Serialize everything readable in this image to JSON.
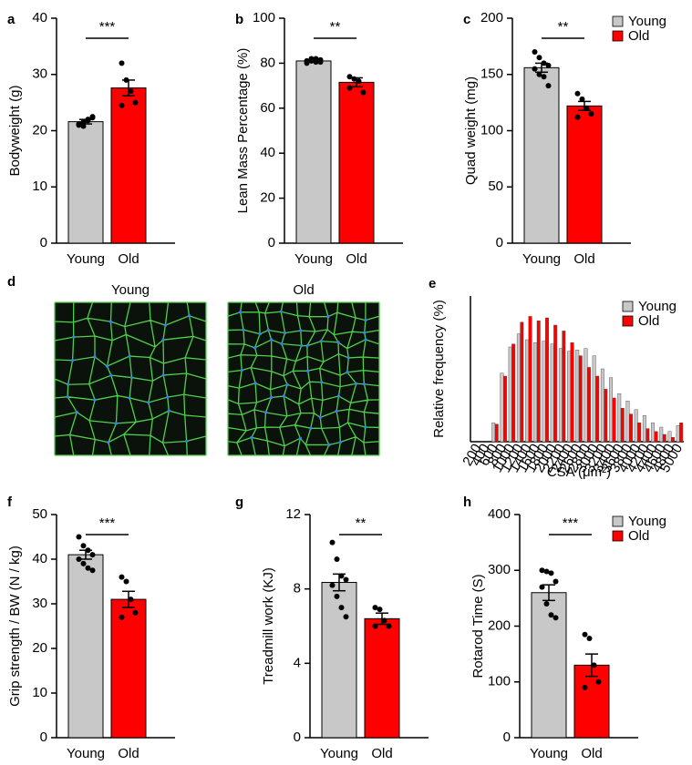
{
  "chart_data": [
    {
      "type": "bar",
      "panel": "a",
      "ylabel": "Bodyweight (g)",
      "categories": [
        "Young",
        "Old"
      ],
      "colors": [
        "#c8c8c8",
        "#ff0000"
      ],
      "values": [
        21.6,
        27.6
      ],
      "errors": [
        0.4,
        1.4
      ],
      "points": [
        [
          21.0,
          21.5,
          22.0,
          22.5,
          21.2,
          20.8,
          21.8,
          22.3
        ],
        [
          32,
          29,
          27,
          25,
          24.5
        ]
      ],
      "significance": "***",
      "ylim": [
        0,
        40
      ],
      "yticks": [
        0,
        10,
        20,
        30,
        40
      ]
    },
    {
      "type": "bar",
      "panel": "b",
      "ylabel": "Lean Mass Percentage (%)",
      "categories": [
        "Young",
        "Old"
      ],
      "colors": [
        "#c8c8c8",
        "#ff0000"
      ],
      "values": [
        81,
        71.5
      ],
      "errors": [
        0.5,
        2
      ],
      "points": [
        [
          81,
          82,
          80.5,
          81.5,
          80,
          81,
          82,
          80.5
        ],
        [
          74,
          73,
          72,
          67,
          69
        ]
      ],
      "significance": "**",
      "ylim": [
        0,
        100
      ],
      "yticks": [
        0,
        20,
        40,
        60,
        80,
        100
      ]
    },
    {
      "type": "bar",
      "panel": "c",
      "ylabel": "Quad weight (mg)",
      "categories": [
        "Young",
        "Old"
      ],
      "colors": [
        "#c8c8c8",
        "#ff0000"
      ],
      "values": [
        156,
        122
      ],
      "errors": [
        4,
        4
      ],
      "points": [
        [
          170,
          165,
          160,
          158,
          155,
          150,
          148,
          140
        ],
        [
          133,
          128,
          120,
          115,
          112
        ]
      ],
      "significance": "**",
      "ylim": [
        0,
        200
      ],
      "yticks": [
        0,
        50,
        100,
        150,
        200
      ],
      "legend": "top-right"
    },
    {
      "type": "image",
      "panel": "d",
      "labels": [
        "Young",
        "Old"
      ]
    },
    {
      "type": "grouped_bar",
      "panel": "e",
      "ylabel": "Relative frequency (%)",
      "xlabel": "CSA (μm²)",
      "categories": [
        "200",
        "400",
        "600",
        "800",
        "1000",
        "1200",
        "1400",
        "1600",
        "1800",
        "2000",
        "2200",
        "2400",
        "2600",
        "2800",
        "3000",
        "3200",
        "3400",
        "3600",
        "3800",
        "4000",
        "4200",
        "4400",
        "4600",
        "4800",
        "5000"
      ],
      "series": [
        {
          "name": "Young",
          "color": "#c8c8c8",
          "values": [
            0,
            0,
            1.3,
            4.7,
            6.5,
            7.4,
            7.0,
            6.8,
            6.9,
            6.7,
            6.4,
            6.2,
            6.3,
            6.4,
            5.9,
            5.0,
            4.4,
            3.3,
            2.8,
            2.2,
            1.8,
            1.3,
            1.0,
            0.7,
            1.1
          ]
        },
        {
          "name": "Old",
          "color": "#ff0000",
          "values": [
            0,
            0,
            1.2,
            4.5,
            6.7,
            8.2,
            8.6,
            8.3,
            8.5,
            8.0,
            7.6,
            6.8,
            5.9,
            5.1,
            4.5,
            3.6,
            3.0,
            2.3,
            1.9,
            1.3,
            0.9,
            0.7,
            0.5,
            0.3,
            1.3
          ]
        }
      ],
      "ylim": [
        0,
        10
      ],
      "legend": "top-right"
    },
    {
      "type": "bar",
      "panel": "f",
      "ylabel": "Grip strength / BW (N / kg)",
      "categories": [
        "Young",
        "Old"
      ],
      "colors": [
        "#c8c8c8",
        "#ff0000"
      ],
      "values": [
        41,
        31
      ],
      "errors": [
        1,
        1.8
      ],
      "points": [
        [
          45,
          43,
          42,
          41,
          40,
          39,
          38,
          37.5
        ],
        [
          36,
          35,
          31,
          28,
          27
        ]
      ],
      "significance": "***",
      "ylim": [
        0,
        50
      ],
      "yticks": [
        0,
        10,
        20,
        30,
        40,
        50
      ]
    },
    {
      "type": "bar",
      "panel": "g",
      "ylabel": "Treadmill work (KJ)",
      "categories": [
        "Young",
        "Old"
      ],
      "colors": [
        "#c8c8c8",
        "#ff0000"
      ],
      "values": [
        8.35,
        6.4
      ],
      "errors": [
        0.45,
        0.3
      ],
      "points": [
        [
          10.5,
          9.6,
          8.7,
          8.5,
          8.2,
          7.6,
          7.0,
          6.5
        ],
        [
          7.0,
          6.9,
          6.3,
          6.0,
          6.0
        ]
      ],
      "significance": "**",
      "ylim": [
        0,
        12
      ],
      "yticks": [
        0,
        4,
        8,
        12
      ]
    },
    {
      "type": "bar",
      "panel": "h",
      "ylabel": "Rotarod Time (S)",
      "categories": [
        "Young",
        "Old"
      ],
      "colors": [
        "#c8c8c8",
        "#ff0000"
      ],
      "values": [
        260,
        130
      ],
      "errors": [
        14,
        20
      ],
      "points": [
        [
          300,
          298,
          295,
          280,
          270,
          240,
          220,
          215
        ],
        [
          185,
          178,
          130,
          100,
          90
        ]
      ],
      "significance": "***",
      "ylim": [
        0,
        400
      ],
      "yticks": [
        0,
        100,
        200,
        300,
        400
      ],
      "legend": "top-right"
    }
  ]
}
